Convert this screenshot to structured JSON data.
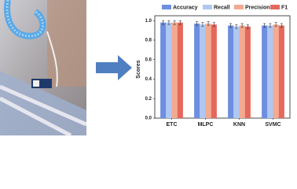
{
  "chart_data": {
    "type": "bar",
    "y_label": "Scores",
    "categories": [
      "ETC",
      "MLPC",
      "KNN",
      "SVMC"
    ],
    "series": [
      {
        "name": "Accuracy",
        "color": "#6e8fe0",
        "values": [
          0.98,
          0.97,
          0.95,
          0.95
        ],
        "errors": [
          0.02,
          0.02,
          0.02,
          0.02
        ]
      },
      {
        "name": "Recall",
        "color": "#aec8f2",
        "values": [
          0.98,
          0.96,
          0.94,
          0.95
        ],
        "errors": [
          0.02,
          0.02,
          0.02,
          0.02
        ]
      },
      {
        "name": "Precision",
        "color": "#f3aa90",
        "values": [
          0.98,
          0.97,
          0.95,
          0.96
        ],
        "errors": [
          0.02,
          0.02,
          0.02,
          0.02
        ]
      },
      {
        "name": "F1",
        "color": "#e5685c",
        "values": [
          0.98,
          0.96,
          0.94,
          0.95
        ],
        "errors": [
          0.02,
          0.02,
          0.02,
          0.02
        ]
      }
    ],
    "ylim": [
      0,
      1.05
    ],
    "yticks": [
      {
        "value": 0,
        "label": "0.0"
      },
      {
        "value": 0.2,
        "label": "0.2"
      },
      {
        "value": 0.4,
        "label": "0.4"
      },
      {
        "value": 0.6,
        "label": "0.6"
      },
      {
        "value": 0.8,
        "label": "0.8"
      },
      {
        "value": 1,
        "label": "1.0"
      }
    ]
  }
}
